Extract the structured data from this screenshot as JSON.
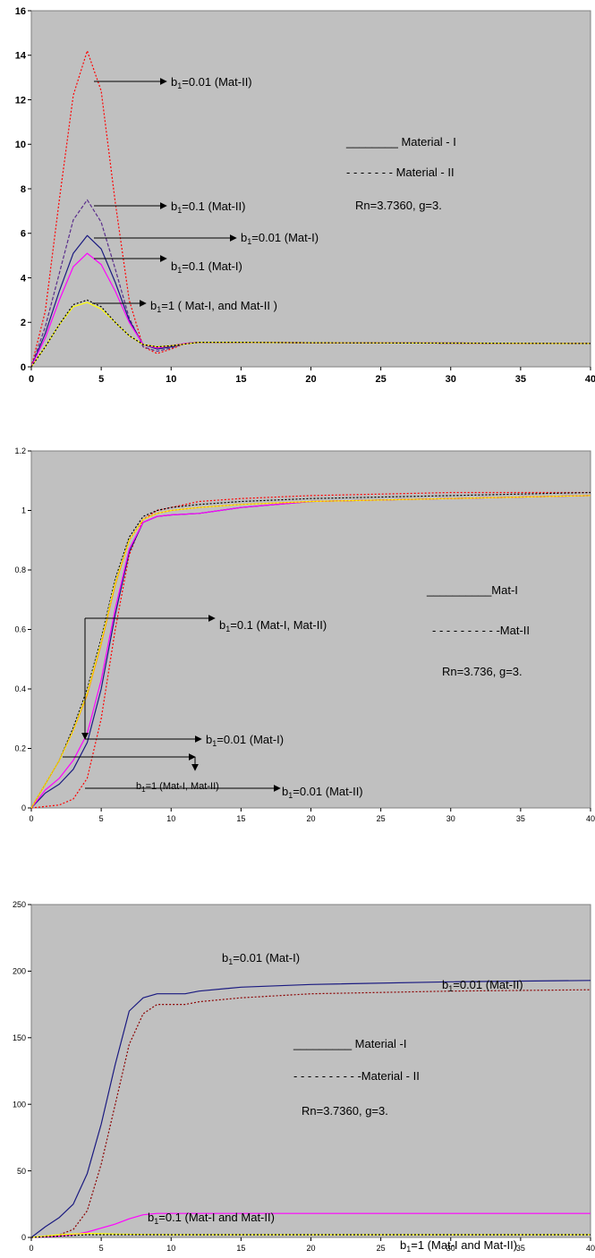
{
  "chart_data": [
    {
      "type": "line",
      "xlim": [
        0,
        40
      ],
      "ylim": [
        0,
        16
      ],
      "x_ticks": [
        "0",
        "5",
        "10",
        "15",
        "20",
        "25",
        "30",
        "35",
        "40"
      ],
      "y_ticks": [
        "0",
        "2",
        "4",
        "6",
        "8",
        "10",
        "12",
        "14",
        "16"
      ],
      "grid": false,
      "legend": {
        "solid": "________ Material - I",
        "dotted": "- - - - - - - Material - II",
        "params": "Rn=3.7360,    g=3."
      },
      "annotations": [
        {
          "pre": "b",
          "sub": "1",
          "post": "=0.01   (Mat-II)"
        },
        {
          "pre": "b",
          "sub": "1",
          "post": "=0.1   (Mat-II)"
        },
        {
          "pre": "b",
          "sub": "1",
          "post": "=0.01  (Mat-I)"
        },
        {
          "pre": "b",
          "sub": "1",
          "post": "=0.1   (Mat-I)"
        },
        {
          "pre": "b",
          "sub": "1",
          "post": "=1 ( Mat-I, and Mat-II )"
        }
      ],
      "series": [
        {
          "color": "#ff0000",
          "dash": "dotted",
          "x": [
            0,
            1,
            2,
            3,
            4,
            5,
            6,
            7,
            8,
            9,
            10,
            11,
            12,
            15,
            20,
            40
          ],
          "y": [
            0,
            2.5,
            7.5,
            12.2,
            14.2,
            12.4,
            7.4,
            3.0,
            0.9,
            0.6,
            0.8,
            1.05,
            1.1,
            1.1,
            1.08,
            1.05
          ]
        },
        {
          "color": "#5a2d8c",
          "dash": "dashed",
          "x": [
            0,
            1,
            2,
            3,
            4,
            5,
            6,
            7,
            8,
            9,
            10,
            11,
            12,
            15,
            20,
            40
          ],
          "y": [
            0,
            1.8,
            4.2,
            6.6,
            7.5,
            6.5,
            4.4,
            2.2,
            0.9,
            0.7,
            0.85,
            1.05,
            1.1,
            1.1,
            1.08,
            1.05
          ]
        },
        {
          "color": "#1a1a80",
          "dash": "solid",
          "x": [
            0,
            1,
            2,
            3,
            4,
            5,
            6,
            7,
            8,
            9,
            10,
            11,
            12,
            15,
            20,
            40
          ],
          "y": [
            0,
            1.5,
            3.4,
            5.1,
            5.9,
            5.3,
            3.8,
            2.1,
            1.0,
            0.8,
            0.9,
            1.05,
            1.1,
            1.1,
            1.08,
            1.05
          ]
        },
        {
          "color": "#ff00ff",
          "dash": "solid",
          "x": [
            0,
            1,
            2,
            3,
            4,
            5,
            6,
            7,
            8,
            9,
            10,
            11,
            12,
            15,
            20,
            40
          ],
          "y": [
            0,
            1.3,
            3.0,
            4.5,
            5.1,
            4.6,
            3.4,
            2.0,
            1.0,
            0.85,
            0.95,
            1.05,
            1.1,
            1.1,
            1.08,
            1.05
          ]
        },
        {
          "color": "#ffff00",
          "dash": "solid",
          "x": [
            0,
            1,
            2,
            3,
            4,
            5,
            6,
            7,
            8,
            9,
            10,
            12,
            15,
            20,
            40
          ],
          "y": [
            0,
            0.9,
            1.9,
            2.7,
            2.9,
            2.6,
            2.0,
            1.4,
            1.0,
            0.9,
            0.95,
            1.1,
            1.1,
            1.08,
            1.05
          ]
        },
        {
          "color": "#000000",
          "dash": "dotted",
          "x": [
            0,
            1,
            2,
            3,
            4,
            5,
            6,
            7,
            8,
            9,
            10,
            12,
            15,
            20,
            40
          ],
          "y": [
            0,
            0.9,
            1.9,
            2.8,
            3.0,
            2.7,
            2.0,
            1.4,
            1.0,
            0.9,
            0.95,
            1.1,
            1.1,
            1.08,
            1.05
          ]
        }
      ]
    },
    {
      "type": "line",
      "xlim": [
        0,
        40
      ],
      "ylim": [
        0,
        1.2
      ],
      "x_ticks": [
        "0",
        "5",
        "10",
        "15",
        "20",
        "25",
        "30",
        "35",
        "40"
      ],
      "y_ticks": [
        "0",
        "0.2",
        "0.4",
        "0.6",
        "0.8",
        "1",
        "1.2"
      ],
      "grid": false,
      "legend": {
        "solid": "__________Mat-I",
        "dotted": "- - - - - - - - - -Mat-II",
        "params": "Rn=3.736,     g=3."
      },
      "annotations": [
        {
          "pre": "b",
          "sub": "1",
          "post": "=0.1  (Mat-I,  Mat-II)"
        },
        {
          "pre": "b",
          "sub": "1",
          "post": "=0.01  (Mat-I)"
        },
        {
          "pre": "b",
          "sub": "1",
          "post": "=1  (Mat-I,  Mat-II)"
        },
        {
          "pre": "b",
          "sub": "1",
          "post": "=0.01   (Mat-II)"
        }
      ],
      "series": [
        {
          "color": "#ff0000",
          "dash": "dotted",
          "x": [
            0,
            2,
            3,
            4,
            5,
            6,
            7,
            8,
            9,
            10,
            12,
            15,
            20,
            30,
            40
          ],
          "y": [
            0,
            0.01,
            0.03,
            0.1,
            0.3,
            0.6,
            0.85,
            0.97,
            1.0,
            1.01,
            1.03,
            1.04,
            1.05,
            1.06,
            1.06
          ]
        },
        {
          "color": "#1a1a80",
          "dash": "solid",
          "x": [
            0,
            1,
            2,
            3,
            4,
            5,
            6,
            7,
            8,
            9,
            10,
            12,
            15,
            20,
            30,
            40
          ],
          "y": [
            0,
            0.05,
            0.08,
            0.13,
            0.22,
            0.4,
            0.65,
            0.86,
            0.96,
            0.98,
            0.985,
            0.99,
            1.01,
            1.03,
            1.04,
            1.05
          ]
        },
        {
          "color": "#ff00ff",
          "dash": "solid",
          "x": [
            0,
            1,
            2,
            3,
            4,
            5,
            6,
            7,
            8,
            9,
            10,
            12,
            15,
            20,
            30,
            40
          ],
          "y": [
            0,
            0.06,
            0.1,
            0.16,
            0.25,
            0.43,
            0.67,
            0.87,
            0.96,
            0.98,
            0.985,
            0.99,
            1.01,
            1.03,
            1.04,
            1.05
          ]
        },
        {
          "color": "#ffa500",
          "dash": "solid",
          "x": [
            0,
            1,
            2,
            3,
            4,
            5,
            6,
            7,
            8,
            9,
            10,
            12,
            15,
            20,
            30,
            40
          ],
          "y": [
            0,
            0.08,
            0.16,
            0.26,
            0.38,
            0.55,
            0.75,
            0.9,
            0.97,
            0.99,
            1.0,
            1.01,
            1.02,
            1.03,
            1.04,
            1.05
          ]
        },
        {
          "color": "#000000",
          "dash": "dotted",
          "x": [
            0,
            1,
            2,
            3,
            4,
            5,
            6,
            7,
            8,
            9,
            10,
            12,
            15,
            20,
            30,
            40
          ],
          "y": [
            0,
            0.08,
            0.16,
            0.27,
            0.4,
            0.57,
            0.77,
            0.91,
            0.98,
            1.0,
            1.01,
            1.02,
            1.03,
            1.04,
            1.05,
            1.06
          ]
        },
        {
          "color": "#ffff00",
          "dash": "dotted",
          "x": [
            0,
            1,
            2,
            3,
            4,
            5,
            6,
            7,
            8,
            9,
            10,
            12,
            15,
            20,
            30,
            40
          ],
          "y": [
            0,
            0.08,
            0.16,
            0.26,
            0.39,
            0.56,
            0.76,
            0.9,
            0.97,
            0.99,
            1.0,
            1.01,
            1.02,
            1.03,
            1.04,
            1.05
          ]
        }
      ]
    },
    {
      "type": "line",
      "xlim": [
        0,
        40
      ],
      "ylim": [
        0,
        250
      ],
      "x_ticks": [
        "0",
        "5",
        "10",
        "15",
        "20",
        "25",
        "30",
        "35",
        "40"
      ],
      "y_ticks": [
        "0",
        "50",
        "100",
        "150",
        "200",
        "250"
      ],
      "grid": false,
      "legend": {
        "solid": "_________ Material -I",
        "dotted": "- - - - - - - - - -Material - II",
        "params": "Rn=3.7360,    g=3."
      },
      "annotations": [
        {
          "pre": "b",
          "sub": "1",
          "post": "=0.01   (Mat-I)"
        },
        {
          "pre": "b",
          "sub": "1",
          "post": "=0.01   (Mat-II)"
        },
        {
          "pre": "b",
          "sub": "1",
          "post": "=0.1 (Mat-I and Mat-II)"
        },
        {
          "pre": "b",
          "sub": "1",
          "post": "=1   (Mat-I and Mat-II)"
        }
      ],
      "series": [
        {
          "color": "#1a1a80",
          "dash": "solid",
          "x": [
            0,
            1,
            2,
            3,
            4,
            5,
            6,
            7,
            8,
            9,
            10,
            11,
            12,
            15,
            20,
            30,
            40
          ],
          "y": [
            0,
            8,
            15,
            25,
            48,
            85,
            130,
            170,
            180,
            183,
            183,
            183,
            185,
            188,
            190,
            192,
            193
          ]
        },
        {
          "color": "#8b0000",
          "dash": "dotted",
          "x": [
            0,
            2,
            3,
            4,
            5,
            6,
            7,
            8,
            9,
            10,
            11,
            12,
            15,
            20,
            30,
            40
          ],
          "y": [
            0,
            2,
            6,
            20,
            55,
            100,
            145,
            168,
            175,
            175,
            175,
            177,
            180,
            183,
            185,
            186
          ]
        },
        {
          "color": "#ff00ff",
          "dash": "solid",
          "x": [
            0,
            2,
            3,
            4,
            5,
            6,
            7,
            8,
            9,
            10,
            12,
            15,
            20,
            30,
            40
          ],
          "y": [
            0,
            1,
            2,
            4,
            7,
            10,
            14,
            17,
            18,
            18,
            18,
            18,
            18,
            18,
            18
          ]
        },
        {
          "color": "#ffff00",
          "dash": "solid",
          "x": [
            0,
            2,
            4,
            6,
            8,
            10,
            12,
            15,
            20,
            30,
            40
          ],
          "y": [
            0,
            2,
            3,
            2.5,
            2.2,
            2,
            2,
            2,
            2,
            2,
            2
          ]
        },
        {
          "color": "#000000",
          "dash": "dotted",
          "x": [
            0,
            2,
            4,
            6,
            8,
            10,
            12,
            15,
            20,
            30,
            40
          ],
          "y": [
            0,
            1,
            2,
            2,
            2,
            2,
            2,
            2,
            2,
            2,
            2
          ]
        }
      ]
    }
  ]
}
